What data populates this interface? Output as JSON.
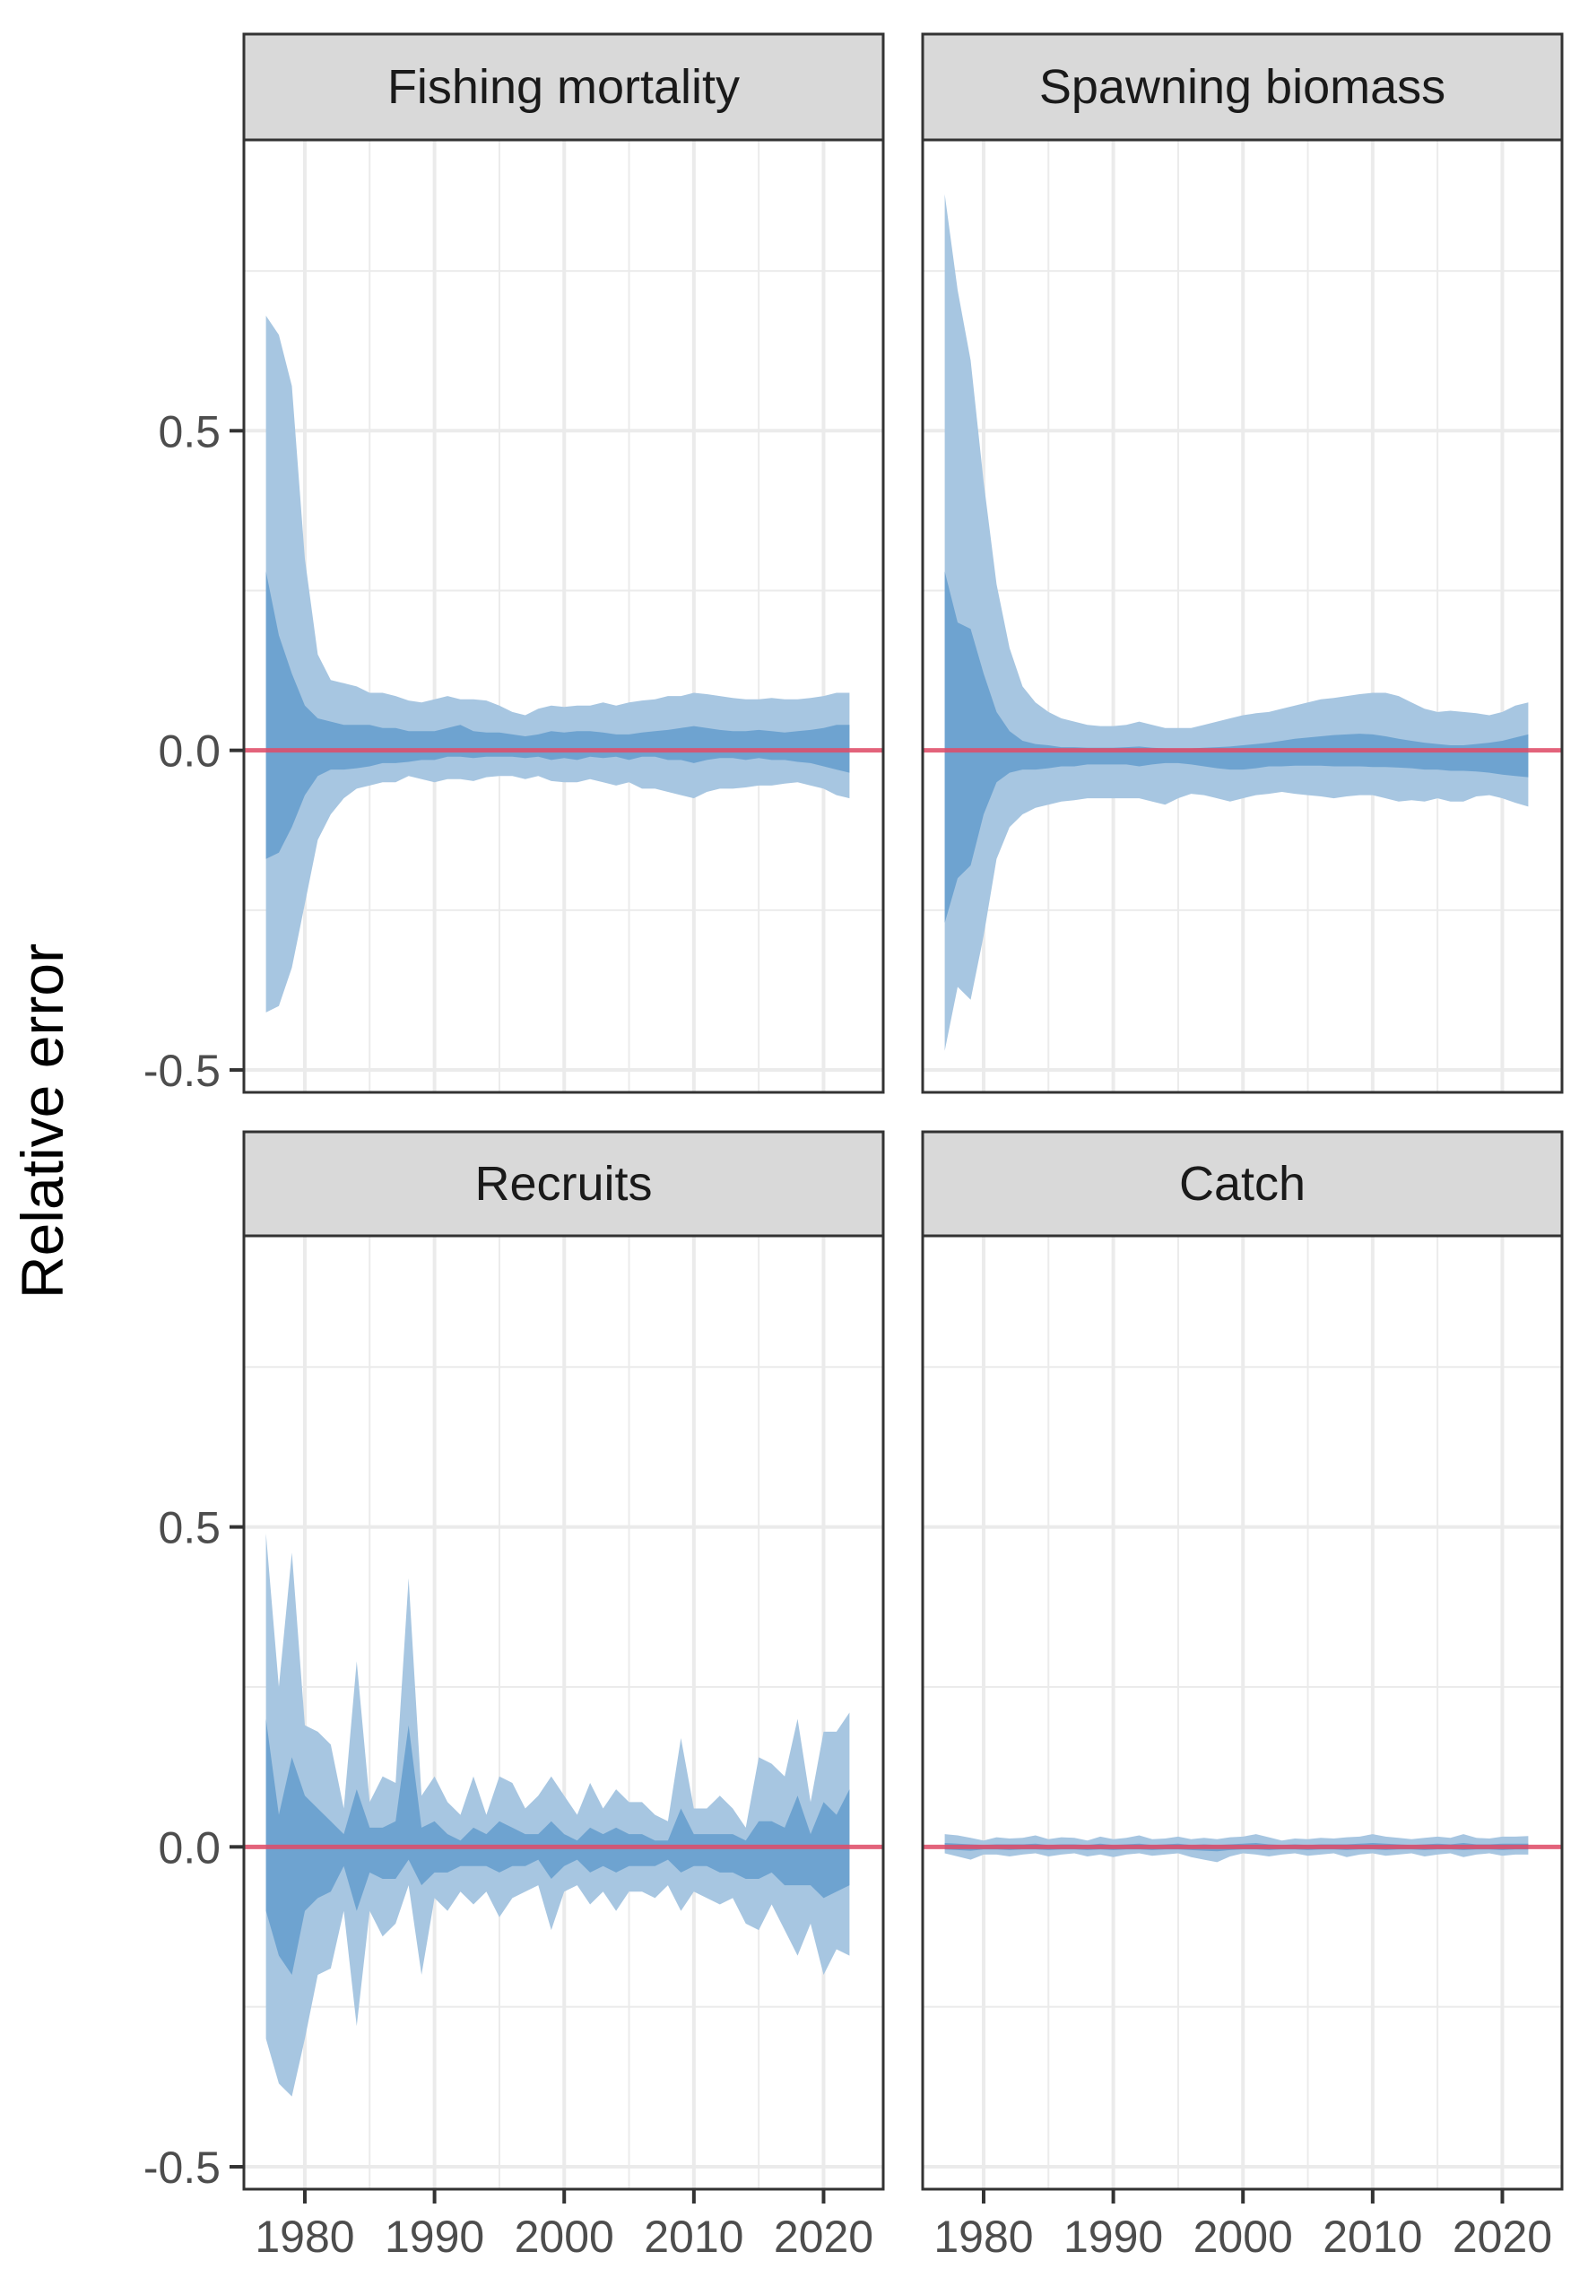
{
  "chart_data": {
    "type": "area",
    "ylabel": "Relative error",
    "xlim": [
      1975.3,
      2024.6
    ],
    "ylim": [
      -0.535,
      0.955
    ],
    "x_breaks": [
      1980,
      1990,
      2000,
      2010,
      2020
    ],
    "x_tick_labels": [
      "1980",
      "1990",
      "2000",
      "2010",
      "2020"
    ],
    "y_breaks": [
      -0.5,
      0.0,
      0.5
    ],
    "y_tick_labels": [
      "-0.5",
      "0.0",
      "0.5"
    ],
    "reference_line": 0,
    "colors": {
      "outer_band": "#a7c6e1",
      "inner_band": "#6ea3d0",
      "reference_line": "#e04b67",
      "strip_fill": "#d9d9d9",
      "grid": "#ebebeb",
      "panel_border": "#333333"
    },
    "panels": [
      {
        "title": "Fishing mortality",
        "series": {
          "x": [
            1977,
            1978,
            1979,
            1980,
            1981,
            1982,
            1983,
            1984,
            1985,
            1986,
            1987,
            1988,
            1989,
            1990,
            1991,
            1992,
            1993,
            1994,
            1995,
            1996,
            1997,
            1998,
            1999,
            2000,
            2001,
            2002,
            2003,
            2004,
            2005,
            2006,
            2007,
            2008,
            2009,
            2010,
            2011,
            2012,
            2013,
            2014,
            2015,
            2016,
            2017,
            2018,
            2019,
            2020,
            2021,
            2022
          ],
          "outer_upper": [
            0.68,
            0.65,
            0.57,
            0.3,
            0.15,
            0.11,
            0.105,
            0.1,
            0.09,
            0.09,
            0.085,
            0.078,
            0.075,
            0.08,
            0.085,
            0.08,
            0.08,
            0.078,
            0.07,
            0.06,
            0.055,
            0.065,
            0.07,
            0.068,
            0.07,
            0.07,
            0.075,
            0.07,
            0.075,
            0.078,
            0.08,
            0.085,
            0.085,
            0.09,
            0.088,
            0.085,
            0.082,
            0.08,
            0.08,
            0.082,
            0.08,
            0.08,
            0.082,
            0.085,
            0.09,
            0.09
          ],
          "inner_upper": [
            0.28,
            0.18,
            0.12,
            0.07,
            0.05,
            0.045,
            0.04,
            0.04,
            0.04,
            0.035,
            0.035,
            0.03,
            0.03,
            0.03,
            0.035,
            0.04,
            0.03,
            0.028,
            0.028,
            0.025,
            0.022,
            0.025,
            0.03,
            0.028,
            0.03,
            0.03,
            0.028,
            0.025,
            0.025,
            0.028,
            0.03,
            0.032,
            0.035,
            0.038,
            0.035,
            0.032,
            0.03,
            0.03,
            0.032,
            0.03,
            0.028,
            0.03,
            0.032,
            0.035,
            0.04,
            0.04
          ],
          "inner_lower": [
            -0.17,
            -0.16,
            -0.12,
            -0.07,
            -0.04,
            -0.03,
            -0.03,
            -0.028,
            -0.025,
            -0.02,
            -0.02,
            -0.018,
            -0.015,
            -0.015,
            -0.01,
            -0.01,
            -0.012,
            -0.01,
            -0.01,
            -0.01,
            -0.012,
            -0.01,
            -0.015,
            -0.012,
            -0.015,
            -0.01,
            -0.012,
            -0.01,
            -0.015,
            -0.01,
            -0.01,
            -0.015,
            -0.015,
            -0.02,
            -0.015,
            -0.012,
            -0.012,
            -0.015,
            -0.012,
            -0.015,
            -0.015,
            -0.018,
            -0.02,
            -0.025,
            -0.03,
            -0.035
          ],
          "outer_lower": [
            -0.41,
            -0.4,
            -0.34,
            -0.24,
            -0.14,
            -0.1,
            -0.075,
            -0.06,
            -0.055,
            -0.05,
            -0.05,
            -0.04,
            -0.045,
            -0.05,
            -0.045,
            -0.045,
            -0.048,
            -0.042,
            -0.04,
            -0.04,
            -0.045,
            -0.04,
            -0.048,
            -0.05,
            -0.05,
            -0.045,
            -0.05,
            -0.055,
            -0.05,
            -0.06,
            -0.06,
            -0.065,
            -0.07,
            -0.075,
            -0.065,
            -0.06,
            -0.06,
            -0.058,
            -0.055,
            -0.055,
            -0.052,
            -0.05,
            -0.055,
            -0.06,
            -0.07,
            -0.075
          ]
        }
      },
      {
        "title": "Spawning biomass",
        "series": {
          "x": [
            1977,
            1978,
            1979,
            1980,
            1981,
            1982,
            1983,
            1984,
            1985,
            1986,
            1987,
            1988,
            1989,
            1990,
            1991,
            1992,
            1993,
            1994,
            1995,
            1996,
            1997,
            1998,
            1999,
            2000,
            2001,
            2002,
            2003,
            2004,
            2005,
            2006,
            2007,
            2008,
            2009,
            2010,
            2011,
            2012,
            2013,
            2014,
            2015,
            2016,
            2017,
            2018,
            2019,
            2020,
            2021,
            2022
          ],
          "outer_upper": [
            0.87,
            0.72,
            0.61,
            0.42,
            0.26,
            0.16,
            0.1,
            0.075,
            0.06,
            0.05,
            0.045,
            0.04,
            0.038,
            0.038,
            0.04,
            0.045,
            0.04,
            0.035,
            0.035,
            0.035,
            0.04,
            0.045,
            0.05,
            0.055,
            0.058,
            0.06,
            0.065,
            0.07,
            0.075,
            0.08,
            0.082,
            0.085,
            0.088,
            0.09,
            0.09,
            0.085,
            0.075,
            0.065,
            0.06,
            0.062,
            0.06,
            0.058,
            0.055,
            0.06,
            0.07,
            0.075
          ],
          "inner_upper": [
            0.28,
            0.2,
            0.19,
            0.12,
            0.06,
            0.03,
            0.015,
            0.01,
            0.008,
            0.005,
            0.005,
            0.004,
            0.004,
            0.004,
            0.005,
            0.006,
            0.004,
            0.003,
            0.003,
            0.003,
            0.004,
            0.005,
            0.006,
            0.008,
            0.01,
            0.012,
            0.015,
            0.018,
            0.02,
            0.022,
            0.024,
            0.025,
            0.026,
            0.025,
            0.022,
            0.018,
            0.015,
            0.012,
            0.01,
            0.008,
            0.008,
            0.01,
            0.012,
            0.015,
            0.02,
            0.025
          ],
          "inner_lower": [
            -0.27,
            -0.2,
            -0.18,
            -0.1,
            -0.05,
            -0.035,
            -0.03,
            -0.03,
            -0.028,
            -0.025,
            -0.025,
            -0.022,
            -0.022,
            -0.022,
            -0.022,
            -0.025,
            -0.022,
            -0.02,
            -0.02,
            -0.022,
            -0.025,
            -0.028,
            -0.03,
            -0.03,
            -0.028,
            -0.025,
            -0.025,
            -0.024,
            -0.024,
            -0.024,
            -0.025,
            -0.025,
            -0.025,
            -0.026,
            -0.026,
            -0.027,
            -0.028,
            -0.03,
            -0.03,
            -0.032,
            -0.032,
            -0.033,
            -0.035,
            -0.038,
            -0.04,
            -0.042
          ],
          "outer_lower": [
            -0.47,
            -0.37,
            -0.39,
            -0.29,
            -0.17,
            -0.12,
            -0.1,
            -0.09,
            -0.085,
            -0.08,
            -0.078,
            -0.075,
            -0.075,
            -0.075,
            -0.075,
            -0.075,
            -0.08,
            -0.085,
            -0.075,
            -0.068,
            -0.07,
            -0.075,
            -0.08,
            -0.075,
            -0.07,
            -0.068,
            -0.065,
            -0.068,
            -0.07,
            -0.072,
            -0.075,
            -0.072,
            -0.07,
            -0.07,
            -0.075,
            -0.08,
            -0.078,
            -0.08,
            -0.075,
            -0.08,
            -0.08,
            -0.072,
            -0.07,
            -0.075,
            -0.082,
            -0.088
          ]
        }
      },
      {
        "title": "Recruits",
        "series": {
          "x": [
            1977,
            1978,
            1979,
            1980,
            1981,
            1982,
            1983,
            1984,
            1985,
            1986,
            1987,
            1988,
            1989,
            1990,
            1991,
            1992,
            1993,
            1994,
            1995,
            1996,
            1997,
            1998,
            1999,
            2000,
            2001,
            2002,
            2003,
            2004,
            2005,
            2006,
            2007,
            2008,
            2009,
            2010,
            2011,
            2012,
            2013,
            2014,
            2015,
            2016,
            2017,
            2018,
            2019,
            2020,
            2021,
            2022
          ],
          "outer_upper": [
            0.49,
            0.25,
            0.46,
            0.19,
            0.18,
            0.16,
            0.06,
            0.29,
            0.07,
            0.11,
            0.1,
            0.42,
            0.08,
            0.11,
            0.07,
            0.05,
            0.11,
            0.05,
            0.11,
            0.1,
            0.06,
            0.08,
            0.11,
            0.08,
            0.05,
            0.1,
            0.06,
            0.09,
            0.07,
            0.07,
            0.05,
            0.04,
            0.17,
            0.06,
            0.06,
            0.08,
            0.06,
            0.03,
            0.14,
            0.13,
            0.11,
            0.2,
            0.07,
            0.18,
            0.18,
            0.21
          ],
          "inner_upper": [
            0.2,
            0.05,
            0.14,
            0.08,
            0.06,
            0.04,
            0.02,
            0.09,
            0.03,
            0.03,
            0.04,
            0.19,
            0.03,
            0.04,
            0.02,
            0.01,
            0.03,
            0.02,
            0.04,
            0.03,
            0.02,
            0.02,
            0.04,
            0.02,
            0.01,
            0.03,
            0.02,
            0.03,
            0.02,
            0.02,
            0.01,
            0.01,
            0.06,
            0.02,
            0.02,
            0.02,
            0.02,
            0.01,
            0.04,
            0.04,
            0.03,
            0.08,
            0.02,
            0.07,
            0.05,
            0.09
          ],
          "inner_lower": [
            -0.1,
            -0.17,
            -0.2,
            -0.1,
            -0.08,
            -0.07,
            -0.03,
            -0.1,
            -0.04,
            -0.05,
            -0.05,
            -0.02,
            -0.06,
            -0.04,
            -0.04,
            -0.03,
            -0.03,
            -0.03,
            -0.04,
            -0.03,
            -0.03,
            -0.02,
            -0.05,
            -0.03,
            -0.02,
            -0.04,
            -0.03,
            -0.04,
            -0.03,
            -0.03,
            -0.03,
            -0.02,
            -0.04,
            -0.03,
            -0.03,
            -0.04,
            -0.04,
            -0.05,
            -0.05,
            -0.04,
            -0.06,
            -0.06,
            -0.06,
            -0.08,
            -0.07,
            -0.06
          ],
          "outer_lower": [
            -0.3,
            -0.37,
            -0.39,
            -0.3,
            -0.2,
            -0.19,
            -0.1,
            -0.28,
            -0.1,
            -0.14,
            -0.12,
            -0.06,
            -0.2,
            -0.08,
            -0.1,
            -0.07,
            -0.09,
            -0.07,
            -0.11,
            -0.08,
            -0.07,
            -0.06,
            -0.13,
            -0.07,
            -0.06,
            -0.09,
            -0.07,
            -0.1,
            -0.07,
            -0.07,
            -0.08,
            -0.06,
            -0.1,
            -0.07,
            -0.08,
            -0.09,
            -0.08,
            -0.12,
            -0.13,
            -0.09,
            -0.13,
            -0.17,
            -0.12,
            -0.2,
            -0.16,
            -0.17
          ]
        }
      },
      {
        "title": "Catch",
        "series": {
          "x": [
            1977,
            1978,
            1979,
            1980,
            1981,
            1982,
            1983,
            1984,
            1985,
            1986,
            1987,
            1988,
            1989,
            1990,
            1991,
            1992,
            1993,
            1994,
            1995,
            1996,
            1997,
            1998,
            1999,
            2000,
            2001,
            2002,
            2003,
            2004,
            2005,
            2006,
            2007,
            2008,
            2009,
            2010,
            2011,
            2012,
            2013,
            2014,
            2015,
            2016,
            2017,
            2018,
            2019,
            2020,
            2021,
            2022
          ],
          "outer_upper": [
            0.02,
            0.018,
            0.014,
            0.01,
            0.015,
            0.013,
            0.014,
            0.018,
            0.012,
            0.015,
            0.014,
            0.01,
            0.016,
            0.012,
            0.014,
            0.018,
            0.012,
            0.013,
            0.016,
            0.012,
            0.014,
            0.012,
            0.015,
            0.016,
            0.02,
            0.015,
            0.01,
            0.013,
            0.012,
            0.014,
            0.013,
            0.015,
            0.016,
            0.02,
            0.016,
            0.014,
            0.012,
            0.014,
            0.016,
            0.014,
            0.02,
            0.014,
            0.013,
            0.016,
            0.016,
            0.017
          ],
          "inner_upper": [
            0.006,
            0.005,
            0.004,
            0.003,
            0.004,
            0.004,
            0.004,
            0.005,
            0.003,
            0.004,
            0.004,
            0.003,
            0.005,
            0.003,
            0.004,
            0.005,
            0.003,
            0.004,
            0.005,
            0.003,
            0.004,
            0.003,
            0.004,
            0.005,
            0.006,
            0.004,
            0.003,
            0.004,
            0.003,
            0.004,
            0.004,
            0.004,
            0.005,
            0.006,
            0.005,
            0.004,
            0.003,
            0.004,
            0.005,
            0.004,
            0.006,
            0.004,
            0.004,
            0.005,
            0.005,
            0.005
          ],
          "inner_lower": [
            -0.004,
            -0.005,
            -0.006,
            -0.004,
            -0.004,
            -0.005,
            -0.004,
            -0.004,
            -0.005,
            -0.004,
            -0.004,
            -0.005,
            -0.004,
            -0.005,
            -0.004,
            -0.004,
            -0.005,
            -0.004,
            -0.004,
            -0.005,
            -0.006,
            -0.007,
            -0.005,
            -0.004,
            -0.004,
            -0.005,
            -0.004,
            -0.004,
            -0.005,
            -0.004,
            -0.004,
            -0.005,
            -0.004,
            -0.004,
            -0.005,
            -0.004,
            -0.004,
            -0.005,
            -0.004,
            -0.004,
            -0.005,
            -0.004,
            -0.004,
            -0.005,
            -0.004,
            -0.004
          ],
          "outer_lower": [
            -0.01,
            -0.015,
            -0.02,
            -0.012,
            -0.012,
            -0.015,
            -0.012,
            -0.01,
            -0.015,
            -0.012,
            -0.01,
            -0.015,
            -0.012,
            -0.016,
            -0.012,
            -0.01,
            -0.014,
            -0.012,
            -0.01,
            -0.016,
            -0.02,
            -0.024,
            -0.015,
            -0.01,
            -0.012,
            -0.015,
            -0.012,
            -0.01,
            -0.014,
            -0.012,
            -0.01,
            -0.016,
            -0.012,
            -0.01,
            -0.014,
            -0.012,
            -0.01,
            -0.015,
            -0.012,
            -0.01,
            -0.016,
            -0.012,
            -0.01,
            -0.014,
            -0.012,
            -0.012
          ]
        }
      }
    ]
  }
}
